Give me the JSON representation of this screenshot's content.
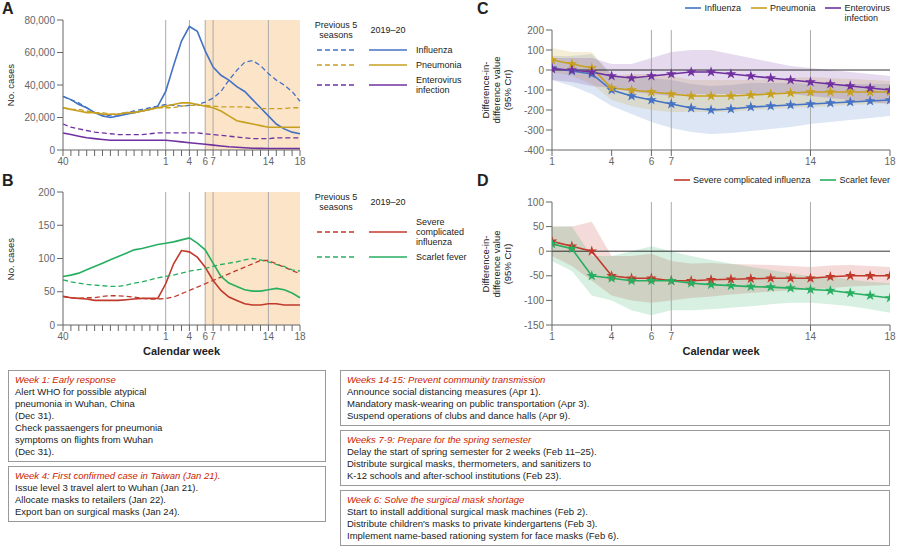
{
  "chart_data": [
    {
      "type": "line",
      "title": "A",
      "ylabel": "No. cases",
      "categories": [
        40,
        null,
        null,
        null,
        null,
        null,
        null,
        null,
        null,
        null,
        null,
        null,
        null,
        1,
        null,
        null,
        4,
        null,
        6,
        7,
        null,
        null,
        null,
        null,
        null,
        null,
        14,
        null,
        null,
        null,
        18
      ],
      "ylim": [
        0,
        80000
      ],
      "yticks": [
        0,
        {
          "value": 20000,
          "label": "20,000"
        },
        {
          "value": 40000,
          "label": "40,000"
        },
        {
          "value": 60000,
          "label": "60,000"
        },
        {
          "value": 80000,
          "label": "80,000"
        }
      ],
      "shade": {
        "from": 6,
        "to": 18,
        "color": "#fce4c8"
      },
      "vlines": {
        "x": [
          1,
          4,
          6,
          7,
          14
        ],
        "color": "#aaaaaa"
      },
      "legend": "right",
      "legend_headers": [
        "Previous 5\nseasons",
        "2019–20"
      ],
      "series": [
        {
          "name": "Influenza",
          "color": "#4472c4",
          "line_style": "dashed",
          "values": [
            33000,
            31000,
            29000,
            26000,
            23000,
            22000,
            21000,
            22000,
            23000,
            24000,
            25000,
            26000,
            27000,
            28000,
            27500,
            27000,
            27500,
            28000,
            29500,
            32000,
            36000,
            43000,
            49000,
            54000,
            55000,
            52000,
            47000,
            43000,
            40000,
            36000,
            30000
          ]
        },
        {
          "name": "Influenza",
          "color": "#4472c4",
          "line_style": "solid",
          "values": [
            33000,
            31000,
            28000,
            26000,
            23000,
            21000,
            20000,
            21000,
            22000,
            23000,
            24000,
            25000,
            27000,
            36000,
            52000,
            67000,
            76000,
            73000,
            61000,
            51000,
            46000,
            43000,
            39000,
            36000,
            31000,
            26000,
            21000,
            16000,
            13000,
            11000,
            10000
          ]
        },
        {
          "name": "Pneumonia",
          "color": "#c8a020",
          "line_style": "dashed",
          "values": [
            26000,
            25000,
            25000,
            24000,
            23000,
            23000,
            22000,
            22000,
            23000,
            23000,
            24000,
            25000,
            26000,
            26000,
            26000,
            27000,
            27500,
            27500,
            27500,
            27000,
            26500,
            26500,
            26500,
            26500,
            26000,
            25500,
            25500,
            25500,
            25500,
            26000,
            26000
          ]
        },
        {
          "name": "Pneumonia",
          "color": "#c8a020",
          "line_style": "solid",
          "values": [
            26000,
            25000,
            24000,
            23000,
            23000,
            22000,
            22000,
            22000,
            23000,
            23000,
            24000,
            25000,
            26000,
            27000,
            28000,
            29000,
            29000,
            28000,
            27000,
            26000,
            24000,
            21000,
            18000,
            17000,
            16000,
            15000,
            14000,
            14000,
            14000,
            14000,
            14000
          ]
        },
        {
          "name": "Enterovirus\ninfection",
          "color": "#7030a0",
          "line_style": "dashed",
          "values": [
            16000,
            14000,
            13000,
            12000,
            11000,
            10500,
            10000,
            9500,
            9500,
            9500,
            9500,
            10000,
            10500,
            10500,
            10500,
            10500,
            10500,
            10500,
            10000,
            9500,
            9000,
            8500,
            8000,
            7500,
            7000,
            7000,
            7000,
            7500,
            7500,
            7500,
            7500
          ]
        },
        {
          "name": "Enterovirus\ninfection",
          "color": "#7030a0",
          "line_style": "solid",
          "values": [
            10500,
            9500,
            8500,
            7500,
            7000,
            6500,
            6000,
            6000,
            6000,
            6000,
            6000,
            6000,
            6000,
            6000,
            5500,
            5000,
            4500,
            4000,
            3500,
            3000,
            2500,
            2000,
            1700,
            1400,
            1100,
            1000,
            900,
            900,
            900,
            900,
            900
          ]
        }
      ]
    },
    {
      "type": "line",
      "title": "B",
      "ylabel": "No. cases",
      "xlabel": "Calendar week",
      "categories": [
        40,
        null,
        null,
        null,
        null,
        null,
        null,
        null,
        null,
        null,
        null,
        null,
        null,
        1,
        null,
        null,
        4,
        null,
        6,
        7,
        null,
        null,
        null,
        null,
        null,
        null,
        14,
        null,
        null,
        null,
        18
      ],
      "ylim": [
        0,
        200
      ],
      "yticks": [
        0,
        50,
        100,
        150,
        200
      ],
      "shade": {
        "from": 6,
        "to": 18,
        "color": "#fce4c8"
      },
      "vlines": {
        "x": [
          1,
          4,
          6,
          7,
          14
        ],
        "color": "#aaaaaa"
      },
      "legend": "right",
      "legend_headers": [
        "Previous 5\nseasons",
        "2019–20"
      ],
      "series": [
        {
          "name": "Severe complicated influenza",
          "color": "#c0392b",
          "line_style": "dashed",
          "values": [
            43,
            41,
            40,
            41,
            41,
            43,
            44,
            44,
            43,
            42,
            40,
            39,
            39,
            40,
            42,
            47,
            52,
            57,
            62,
            67,
            72,
            77,
            82,
            87,
            92,
            97,
            97,
            92,
            87,
            82,
            77
          ]
        },
        {
          "name": "Severe complicated influenza",
          "color": "#c0392b",
          "line_style": "solid",
          "values": [
            43,
            41,
            40,
            39,
            37,
            37,
            37,
            37,
            38,
            39,
            40,
            40,
            40,
            62,
            92,
            112,
            110,
            102,
            87,
            67,
            52,
            42,
            37,
            32,
            30,
            30,
            32,
            32,
            30,
            30,
            30
          ]
        },
        {
          "name": "Scarlet fever",
          "color": "#27ae60",
          "line_style": "dashed",
          "values": [
            68,
            65,
            63,
            61,
            60,
            59,
            58,
            58,
            60,
            63,
            65,
            68,
            71,
            73,
            75,
            78,
            81,
            83,
            85,
            88,
            91,
            93,
            95,
            98,
            100,
            98,
            95,
            91,
            88,
            83,
            81
          ]
        },
        {
          "name": "Scarlet fever",
          "color": "#27ae60",
          "line_style": "solid",
          "values": [
            73,
            75,
            78,
            83,
            88,
            93,
            98,
            103,
            108,
            113,
            115,
            118,
            121,
            123,
            125,
            128,
            131,
            123,
            113,
            93,
            73,
            63,
            58,
            53,
            51,
            51,
            53,
            55,
            53,
            48,
            41
          ]
        }
      ],
      "annotations": [
        {
          "title": "Week 1: Early response",
          "text": "Alert WHO for possible atypical\npneumonia in Wuhan, China\n(Dec 31).\nCheck passaengers for pneumonia\nsymptoms on flights from Wuhan\n(Dec 31).",
          "color": "#cc2200"
        },
        {
          "title": "Week 4: First confirmed case in Taiwan (Jan 21).",
          "text": "Issue level 3 travel alert to Wuhan (Jan 21).\nAllocate masks to retailers (Jan 22).\nExport ban on surgical masks (Jan 24).",
          "color": "#cc2200"
        },
        {
          "title": "Weeks 14-15: Prevent community transmission",
          "text": "Announce social distancing measures (Apr 1).\nMandatory mask-wearing on public transportation (Apr 3).\nSuspend operations of clubs and dance halls (Apr 9).",
          "color": "#cc2200"
        },
        {
          "title": "Weeks 7-9: Prepare for the spring semester",
          "text": "Delay the start of spring semester for 2 weeks (Feb 11–25).\nDistribute surgical masks, thermometers, and sanitizers to\nK-12 schools and after-school institutions (Feb 23).",
          "color": "#cc2200"
        },
        {
          "title": "Week 6: Solve the surgical mask shortage",
          "text": "Start to install additional surgical mask machines (Feb 2).\nDistribute children's masks to private kindergartens (Feb 3).\nImplement name-based rationing system for face masks (Feb 6).",
          "color": "#cc2200"
        }
      ]
    },
    {
      "type": "line",
      "title": "C",
      "ylabel": "Difference-in-\ndifference value\n(95% CrI)",
      "x": [
        1,
        2,
        3,
        4,
        5,
        6,
        7,
        8,
        9,
        10,
        11,
        12,
        13,
        14,
        15,
        16,
        17,
        18
      ],
      "xlim": [
        1,
        18
      ],
      "xticks": [
        1,
        4,
        6,
        7,
        14,
        18
      ],
      "ylim": [
        -400,
        200
      ],
      "yticks": [
        -400,
        -300,
        -200,
        -100,
        0,
        100,
        200
      ],
      "vlines": {
        "x": [
          6,
          7,
          14
        ],
        "color": "#aaaaaa"
      },
      "hlines": {
        "y": [
          0
        ],
        "color": "#000000"
      },
      "legend": "top",
      "series": [
        {
          "name": "Influenza",
          "color": "#4472c4",
          "marker": "star",
          "values": [
            10,
            -5,
            -20,
            -100,
            -130,
            -150,
            -170,
            -190,
            -200,
            -195,
            -185,
            -180,
            -175,
            -170,
            -165,
            -160,
            -155,
            -150
          ],
          "ci_lo": [
            -50,
            -80,
            -120,
            -180,
            -220,
            -260,
            -290,
            -310,
            -320,
            -315,
            -305,
            -295,
            -285,
            -270,
            -260,
            -250,
            -240,
            -230
          ],
          "ci_hi": [
            70,
            70,
            80,
            -20,
            -40,
            -40,
            -50,
            -70,
            -80,
            -75,
            -65,
            -65,
            -65,
            -70,
            -70,
            -70,
            -70,
            -70
          ]
        },
        {
          "name": "Pneumonia",
          "color": "#c8a020",
          "marker": "star",
          "values": [
            50,
            30,
            10,
            -90,
            -100,
            -110,
            -120,
            -130,
            -130,
            -130,
            -125,
            -120,
            -115,
            -110,
            -110,
            -110,
            -110,
            -110
          ],
          "ci_lo": [
            -10,
            -30,
            -70,
            -150,
            -180,
            -200,
            -210,
            -210,
            -210,
            -210,
            -200,
            -195,
            -190,
            -185,
            -180,
            -175,
            -170,
            -165
          ],
          "ci_hi": [
            110,
            90,
            90,
            -30,
            -20,
            -20,
            -30,
            -50,
            -50,
            -50,
            -50,
            -45,
            -40,
            -35,
            -40,
            -45,
            -50,
            -55
          ]
        },
        {
          "name": "Enterovirus\ninfection",
          "color": "#7030a0",
          "marker": "star",
          "values": [
            5,
            0,
            -10,
            -30,
            -40,
            -30,
            -20,
            -10,
            -10,
            -20,
            -30,
            -40,
            -50,
            -60,
            -70,
            -80,
            -90,
            -100
          ],
          "ci_lo": [
            -50,
            -60,
            -80,
            -90,
            -110,
            -120,
            -130,
            -120,
            -120,
            -120,
            -120,
            -120,
            -120,
            -130,
            -140,
            -150,
            -160,
            -170
          ],
          "ci_hi": [
            60,
            60,
            60,
            30,
            30,
            60,
            90,
            100,
            100,
            80,
            60,
            40,
            20,
            10,
            0,
            -10,
            -20,
            -30
          ]
        }
      ]
    },
    {
      "type": "line",
      "title": "D",
      "ylabel": "Difference-in-\ndifference value\n(95% CrI)",
      "xlabel": "Calendar week",
      "x": [
        1,
        2,
        3,
        4,
        5,
        6,
        7,
        8,
        9,
        10,
        11,
        12,
        13,
        14,
        15,
        16,
        17,
        18
      ],
      "xlim": [
        1,
        18
      ],
      "xticks": [
        1,
        4,
        6,
        7,
        14,
        18
      ],
      "ylim": [
        -150,
        100
      ],
      "yticks": [
        -150,
        -100,
        -50,
        0,
        50,
        100
      ],
      "vlines": {
        "x": [
          6,
          7,
          14
        ],
        "color": "#aaaaaa"
      },
      "hlines": {
        "y": [
          0
        ],
        "color": "#000000"
      },
      "legend": "top",
      "series": [
        {
          "name": "Severe complicated influenza",
          "color": "#c0392b",
          "marker": "star",
          "values": [
            20,
            10,
            0,
            -50,
            -55,
            -55,
            -60,
            -60,
            -58,
            -57,
            -56,
            -55,
            -55,
            -55,
            -52,
            -50,
            -50,
            -50
          ],
          "ci_lo": [
            -10,
            -30,
            -60,
            -90,
            -100,
            -105,
            -100,
            -95,
            -92,
            -88,
            -85,
            -82,
            -80,
            -78,
            -75,
            -72,
            -70,
            -68
          ],
          "ci_hi": [
            50,
            50,
            60,
            -10,
            -10,
            -5,
            -20,
            -25,
            -24,
            -26,
            -27,
            -28,
            -30,
            -32,
            -29,
            -28,
            -30,
            -32
          ]
        },
        {
          "name": "Scarlet fever",
          "color": "#27ae60",
          "marker": "star",
          "values": [
            15,
            5,
            -50,
            -55,
            -60,
            -60,
            -60,
            -65,
            -68,
            -70,
            -72,
            -73,
            -75,
            -78,
            -80,
            -85,
            -90,
            -95
          ],
          "ci_lo": [
            -20,
            -40,
            -90,
            -100,
            -120,
            -130,
            -120,
            -120,
            -118,
            -115,
            -112,
            -108,
            -105,
            -105,
            -108,
            -112,
            -118,
            -125
          ],
          "ci_hi": [
            50,
            50,
            -10,
            -10,
            0,
            10,
            0,
            -10,
            -18,
            -25,
            -32,
            -38,
            -45,
            -51,
            -52,
            -58,
            -62,
            -65
          ]
        }
      ]
    }
  ]
}
